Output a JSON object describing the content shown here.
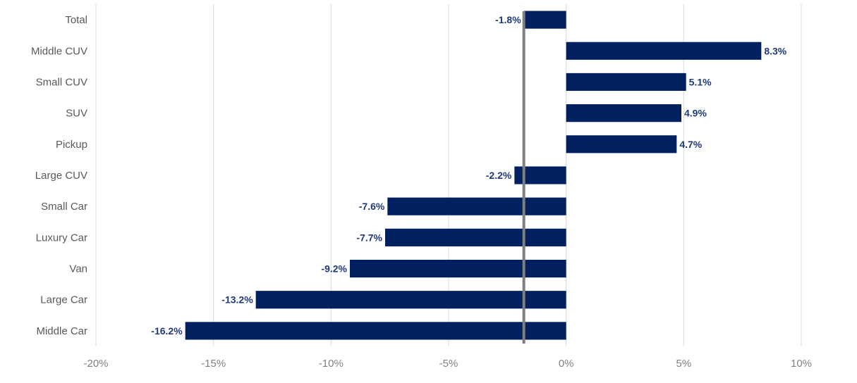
{
  "chart_data": {
    "type": "bar",
    "orientation": "horizontal",
    "title": "",
    "xlabel": "",
    "ylabel": "",
    "categories": [
      "Total",
      "Middle CUV",
      "Small CUV",
      "SUV",
      "Pickup",
      "Large CUV",
      "Small Car",
      "Luxury Car",
      "Van",
      "Large Car",
      "Middle Car"
    ],
    "values": [
      -1.8,
      8.3,
      5.1,
      4.9,
      4.7,
      -2.2,
      -7.6,
      -7.7,
      -9.2,
      -13.2,
      -16.2
    ],
    "value_labels": [
      "-1.8%",
      "8.3%",
      "5.1%",
      "4.9%",
      "4.7%",
      "-2.2%",
      "-7.6%",
      "-7.7%",
      "-9.2%",
      "-13.2%",
      "-16.2%"
    ],
    "xlim": [
      -20,
      10
    ],
    "x_ticks": [
      -20,
      -15,
      -10,
      -5,
      0,
      5,
      10
    ],
    "x_tick_labels": [
      "-20%",
      "-15%",
      "-10%",
      "-5%",
      "0%",
      "5%",
      "10%"
    ],
    "reference_line_value": -1.8,
    "grid": true,
    "legend": "none",
    "colors": {
      "bar": "#002060",
      "reference_line": "#7f7f7f",
      "grid": "#d9d9d9",
      "value_label": "#1f3a7a",
      "category_label": "#595959",
      "tick_label": "#7f7f7f"
    }
  }
}
